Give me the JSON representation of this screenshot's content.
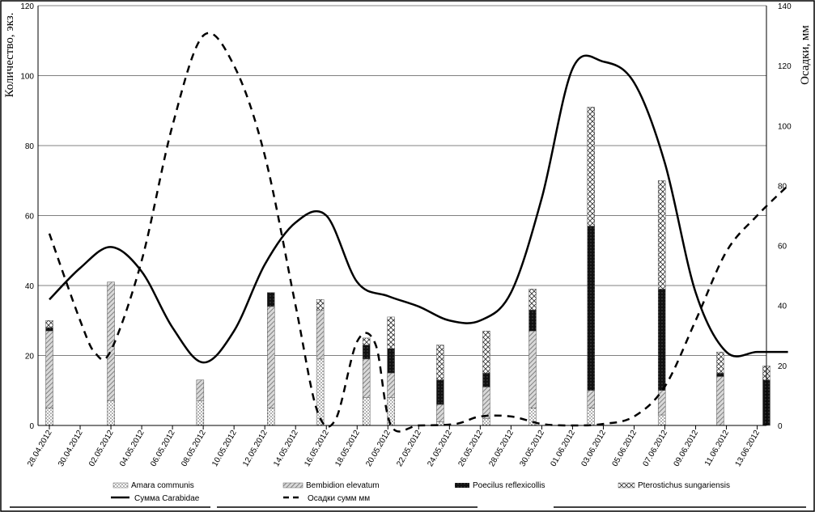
{
  "chart_data": {
    "type": "bar+line",
    "categories": [
      "28.04.2012",
      "30.04.2012",
      "02.05.2012",
      "04.05.2012",
      "06.05.2012",
      "08.05.2012",
      "10.05.2012",
      "12.05.2012",
      "14.05.2012",
      "16.05.2012",
      "18.05.2012",
      "20.05.2012",
      "22.05.2012",
      "24.05.2012",
      "26.05.2012",
      "28.05.2012",
      "30.05.2012",
      "01.06.2012",
      "03.06.2012",
      "05.06.2012",
      "07.06.2012",
      "09.06.2012",
      "11.06.2012",
      "13.06.2012"
    ],
    "ylabel_left": "Количество, экз.",
    "ylabel_right": "Осадки, мм",
    "ylim_left": [
      0,
      120
    ],
    "ylim_right": [
      0,
      140
    ],
    "yticks_left": [
      "0",
      "20",
      "40",
      "60",
      "80",
      "100",
      "120"
    ],
    "yticks_right": [
      "0",
      "20",
      "40",
      "60",
      "80",
      "100",
      "120",
      "140"
    ],
    "grid": true,
    "legend_position": "bottom",
    "bar_groups": [
      {
        "x": 0.0,
        "values": [
          5,
          22,
          1,
          2
        ]
      },
      {
        "x": 2.0,
        "values": [
          7,
          34,
          0,
          0
        ]
      },
      {
        "x": 4.9,
        "values": [
          7,
          6,
          0,
          0
        ]
      },
      {
        "x": 7.2,
        "values": [
          5,
          29,
          4,
          0
        ]
      },
      {
        "x": 8.8,
        "values": [
          19,
          14,
          0,
          3
        ]
      },
      {
        "x": 10.3,
        "values": [
          8,
          11,
          4,
          2
        ]
      },
      {
        "x": 11.1,
        "values": [
          8,
          7,
          7,
          9
        ]
      },
      {
        "x": 12.7,
        "values": [
          1,
          5,
          7,
          10
        ]
      },
      {
        "x": 14.2,
        "values": [
          2,
          9,
          4,
          12
        ]
      },
      {
        "x": 15.7,
        "values": [
          5,
          22,
          6,
          6
        ]
      },
      {
        "x": 17.6,
        "values": [
          5,
          5,
          47,
          34
        ]
      },
      {
        "x": 19.9,
        "values": [
          3,
          7,
          29,
          31
        ]
      },
      {
        "x": 21.8,
        "values": [
          0,
          14,
          1,
          6
        ]
      },
      {
        "x": 23.3,
        "values": [
          0,
          0,
          13,
          4
        ]
      }
    ],
    "series": [
      {
        "name": "Amara communis",
        "kind": "bar",
        "pattern": "dots"
      },
      {
        "name": "Bembidion elevatum",
        "kind": "bar",
        "pattern": "diag"
      },
      {
        "name": "Poecilus reflexicollis",
        "kind": "bar",
        "pattern": "dark"
      },
      {
        "name": "Pterostichus sungariensis",
        "kind": "bar",
        "pattern": "cross"
      },
      {
        "name": "Сумма Carabidae",
        "kind": "line",
        "axis": "left",
        "points": [
          [
            0,
            36
          ],
          [
            1,
            45
          ],
          [
            2,
            51
          ],
          [
            3,
            44
          ],
          [
            4,
            28
          ],
          [
            5,
            18
          ],
          [
            6,
            27
          ],
          [
            7,
            46
          ],
          [
            8,
            58
          ],
          [
            9,
            60
          ],
          [
            10,
            41
          ],
          [
            11,
            37
          ],
          [
            12,
            34
          ],
          [
            13,
            30
          ],
          [
            14,
            30
          ],
          [
            15,
            38
          ],
          [
            16,
            65
          ],
          [
            17,
            102
          ],
          [
            18,
            104
          ],
          [
            19,
            98
          ],
          [
            20,
            75
          ],
          [
            21,
            38
          ],
          [
            22,
            21
          ],
          [
            23,
            21
          ],
          [
            24,
            21
          ]
        ]
      },
      {
        "name": "Осадки сумм мм",
        "kind": "dashed-line",
        "axis": "right",
        "points": [
          [
            0,
            64
          ],
          [
            1,
            35
          ],
          [
            1.5,
            24
          ],
          [
            2,
            25
          ],
          [
            3,
            55
          ],
          [
            4,
            100
          ],
          [
            5,
            130
          ],
          [
            6,
            120
          ],
          [
            7,
            90
          ],
          [
            8,
            40
          ],
          [
            8.7,
            5
          ],
          [
            9.3,
            2
          ],
          [
            10,
            28
          ],
          [
            10.6,
            27
          ],
          [
            11.1,
            0
          ],
          [
            12,
            0
          ],
          [
            13.2,
            0.5
          ],
          [
            14,
            3
          ],
          [
            15,
            3
          ],
          [
            16,
            0.5
          ],
          [
            17,
            0
          ],
          [
            18,
            0.5
          ],
          [
            19,
            3
          ],
          [
            20,
            13
          ],
          [
            21,
            35
          ],
          [
            22,
            58
          ],
          [
            23,
            70
          ],
          [
            24,
            80
          ]
        ]
      }
    ]
  }
}
